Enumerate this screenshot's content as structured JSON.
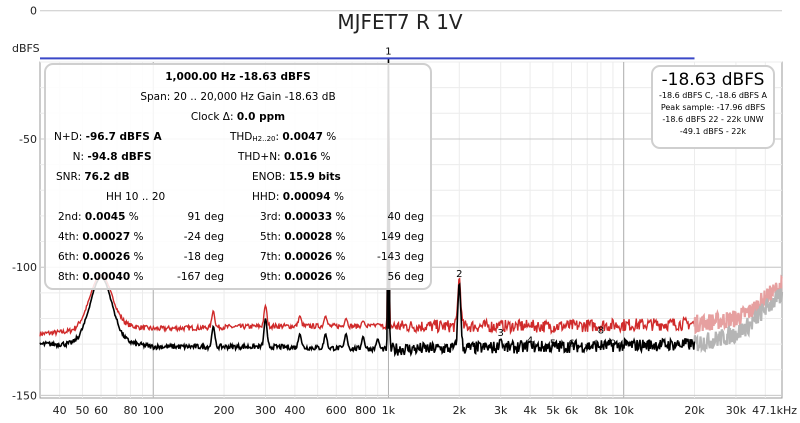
{
  "chart_data": {
    "type": "line",
    "title": "MJFET7 R 1V",
    "ylabel": "dBFS",
    "xlabel": "",
    "x_scale": "log",
    "xlim": [
      33,
      47100
    ],
    "ylim": [
      -151,
      -20
    ],
    "grid": true,
    "y_ticks": [
      {
        "value": -150,
        "label": "-150"
      },
      {
        "value": -100,
        "label": "-100"
      },
      {
        "value": -50,
        "label": "-50"
      },
      {
        "value": 0,
        "label": "0"
      }
    ],
    "x_ticks": [
      {
        "value": 40,
        "label": "40"
      },
      {
        "value": 50,
        "label": "50"
      },
      {
        "value": 60,
        "label": "60"
      },
      {
        "value": 80,
        "label": "80"
      },
      {
        "value": 100,
        "label": "100"
      },
      {
        "value": 200,
        "label": "200"
      },
      {
        "value": 300,
        "label": "300"
      },
      {
        "value": 400,
        "label": "400"
      },
      {
        "value": 600,
        "label": "600"
      },
      {
        "value": 800,
        "label": "800"
      },
      {
        "value": 1000,
        "label": "1k"
      },
      {
        "value": 2000,
        "label": "2k"
      },
      {
        "value": 3000,
        "label": "3k"
      },
      {
        "value": 4000,
        "label": "4k"
      },
      {
        "value": 5000,
        "label": "5k"
      },
      {
        "value": 6000,
        "label": "6k"
      },
      {
        "value": 8000,
        "label": "8k"
      },
      {
        "value": 10000,
        "label": "10k"
      },
      {
        "value": 20000,
        "label": "20k"
      },
      {
        "value": 30000,
        "label": "30k"
      },
      {
        "value": 47100,
        "label": "47.1kHz"
      }
    ],
    "fundamental": {
      "freq": 1000,
      "level": -18.63,
      "label": "1"
    },
    "harmonic_markers": [
      {
        "label": "2",
        "freq": 2000,
        "level": -105
      },
      {
        "label": "3",
        "freq": 3000,
        "level": -128
      },
      {
        "label": "4",
        "freq": 4000,
        "level": -131
      },
      {
        "label": "5",
        "freq": 5000,
        "level": -132
      },
      {
        "label": "6",
        "freq": 6000,
        "level": -132
      },
      {
        "label": "7",
        "freq": 7000,
        "level": -134
      },
      {
        "label": "8",
        "freq": 8000,
        "level": -127
      },
      {
        "label": "9",
        "freq": 9000,
        "level": -132
      }
    ],
    "reference_line": {
      "level": -18.6,
      "from": 33,
      "to": 20000,
      "color": "#3a48c8"
    },
    "series": [
      {
        "color": "#d02a2a",
        "noise_floor": [
          [
            33,
            -126
          ],
          [
            45,
            -125
          ],
          [
            60,
            -122
          ],
          [
            100,
            -124
          ],
          [
            300,
            -123
          ],
          [
            1000,
            -123
          ],
          [
            5000,
            -123
          ],
          [
            20000,
            -122
          ]
        ],
        "peaks": [
          [
            60,
            -103
          ],
          [
            180,
            -117
          ],
          [
            300,
            -115
          ],
          [
            420,
            -119
          ],
          [
            540,
            -119
          ],
          [
            660,
            -120
          ],
          [
            780,
            -121
          ],
          [
            900,
            -122
          ],
          [
            1000,
            -18.63
          ],
          [
            2000,
            -104
          ],
          [
            3000,
            -122
          ],
          [
            4000,
            -123
          ]
        ],
        "extension_color": "#e6a0a0",
        "extension": [
          [
            20000,
            -122
          ],
          [
            25000,
            -121
          ],
          [
            30000,
            -120
          ],
          [
            35000,
            -117
          ],
          [
            40000,
            -112
          ],
          [
            47100,
            -107
          ]
        ]
      },
      {
        "color": "#000000",
        "noise_floor": [
          [
            33,
            -130
          ],
          [
            45,
            -130
          ],
          [
            60,
            -128
          ],
          [
            100,
            -131
          ],
          [
            300,
            -131
          ],
          [
            1000,
            -132
          ],
          [
            5000,
            -131
          ],
          [
            20000,
            -130
          ]
        ],
        "peaks": [
          [
            60,
            -104
          ],
          [
            180,
            -123
          ],
          [
            300,
            -120
          ],
          [
            420,
            -126
          ],
          [
            540,
            -126
          ],
          [
            660,
            -126
          ],
          [
            780,
            -127
          ],
          [
            900,
            -128
          ],
          [
            1000,
            -18.63
          ],
          [
            2000,
            -106
          ],
          [
            3000,
            -128
          ],
          [
            4000,
            -129
          ]
        ],
        "extension_color": "#b5b5b5",
        "extension": [
          [
            20000,
            -130
          ],
          [
            25000,
            -128
          ],
          [
            30000,
            -126
          ],
          [
            35000,
            -122
          ],
          [
            40000,
            -116
          ],
          [
            47100,
            -111
          ]
        ]
      }
    ]
  },
  "panel": {
    "header1": "1,000.00 Hz  -18.63 dBFS",
    "header2": "Span: 20 .. 20,000 Hz  Gain -18.63 dB",
    "clock_label": "Clock Δ: ",
    "clock_value": "0.0 ppm",
    "nd_label": "N+D:",
    "nd_value": "-96.7 dBFS A",
    "thd_label": "THD",
    "thd_sub": "H2..20",
    "thd_colon": ":",
    "thd_value": "0.0047",
    "thd_unit": "%",
    "n_label": "N:",
    "n_value": "-94.8 dBFS",
    "thdn_label": "THD+N:",
    "thdn_value": "0.016",
    "thdn_unit": "%",
    "snr_label": "SNR:",
    "snr_value": "76.2 dB",
    "enob_label": "ENOB:",
    "enob_value": "15.9 bits",
    "hh_label": "HH 10 .. 20",
    "hhd_label": "HHD:",
    "hhd_value": "0.00094",
    "hhd_unit": "%",
    "harmonics": [
      {
        "label": "2nd:",
        "value": "0.0045",
        "unit": "%",
        "phase": "91 deg"
      },
      {
        "label": "3rd:",
        "value": "0.00033",
        "unit": "%",
        "phase": "40 deg"
      },
      {
        "label": "4th:",
        "value": "0.00027",
        "unit": "%",
        "phase": "-24 deg"
      },
      {
        "label": "5th:",
        "value": "0.00028",
        "unit": "%",
        "phase": "149 deg"
      },
      {
        "label": "6th:",
        "value": "0.00026",
        "unit": "%",
        "phase": "-18 deg"
      },
      {
        "label": "7th:",
        "value": "0.00026",
        "unit": "%",
        "phase": "-143 deg"
      },
      {
        "label": "8th:",
        "value": "0.00040",
        "unit": "%",
        "phase": "-167 deg"
      },
      {
        "label": "9th:",
        "value": "0.00026",
        "unit": "%",
        "phase": "56 deg"
      }
    ]
  },
  "level_box": {
    "main": "-18.63 dBFS",
    "line1": "-18.6 dBFS C, -18.6 dBFS A",
    "line2": "Peak sample: -17.96 dBFS",
    "line3": "-18.6 dBFS 22 - 22k UNW",
    "line4": "-49.1 dBFS - 22k"
  }
}
